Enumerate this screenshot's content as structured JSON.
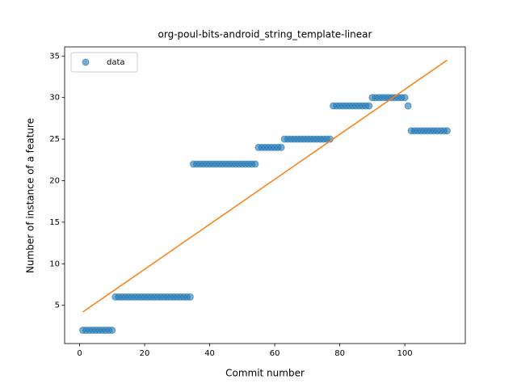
{
  "chart_data": {
    "type": "scatter",
    "title": "org-poul-bits-android_string_template-linear",
    "xlabel": "Commit number",
    "ylabel": "Number of instance of a feature",
    "xlim": [
      -4.6,
      118.6
    ],
    "ylim": [
      0.4,
      36.1
    ],
    "xticks": [
      0,
      20,
      40,
      60,
      80,
      100
    ],
    "yticks": [
      5,
      10,
      15,
      20,
      25,
      30,
      35
    ],
    "legend": "upper left",
    "series": [
      {
        "name": "data",
        "kind": "scatter",
        "color": "#1f77b4",
        "x": [
          1,
          2,
          3,
          4,
          5,
          6,
          7,
          8,
          9,
          10,
          11,
          12,
          13,
          14,
          15,
          16,
          17,
          18,
          19,
          20,
          21,
          22,
          23,
          24,
          25,
          26,
          27,
          28,
          29,
          30,
          31,
          32,
          33,
          34,
          35,
          36,
          37,
          38,
          39,
          40,
          41,
          42,
          43,
          44,
          45,
          46,
          47,
          48,
          49,
          50,
          51,
          52,
          53,
          54,
          55,
          56,
          57,
          58,
          59,
          60,
          61,
          62,
          63,
          64,
          65,
          66,
          67,
          68,
          69,
          70,
          71,
          72,
          73,
          74,
          75,
          76,
          77,
          78,
          79,
          80,
          81,
          82,
          83,
          84,
          85,
          86,
          87,
          88,
          89,
          90,
          91,
          92,
          93,
          94,
          95,
          96,
          97,
          98,
          99,
          100,
          101,
          102,
          103,
          104,
          105,
          106,
          107,
          108,
          109,
          110,
          111,
          112,
          113
        ],
        "values": [
          2,
          2,
          2,
          2,
          2,
          2,
          2,
          2,
          2,
          2,
          6,
          6,
          6,
          6,
          6,
          6,
          6,
          6,
          6,
          6,
          6,
          6,
          6,
          6,
          6,
          6,
          6,
          6,
          6,
          6,
          6,
          6,
          6,
          6,
          22,
          22,
          22,
          22,
          22,
          22,
          22,
          22,
          22,
          22,
          22,
          22,
          22,
          22,
          22,
          22,
          22,
          22,
          22,
          22,
          24,
          24,
          24,
          24,
          24,
          24,
          24,
          24,
          25,
          25,
          25,
          25,
          25,
          25,
          25,
          25,
          25,
          25,
          25,
          25,
          25,
          25,
          25,
          29,
          29,
          29,
          29,
          29,
          29,
          29,
          29,
          29,
          29,
          29,
          29,
          30,
          30,
          30,
          30,
          30,
          30,
          30,
          30,
          30,
          30,
          30,
          29,
          26,
          26,
          26,
          26,
          26,
          26,
          26,
          26,
          26,
          26,
          26,
          26
        ]
      },
      {
        "kind": "line",
        "color": "#ff7f0e",
        "x": [
          1,
          113
        ],
        "values": [
          4.2,
          34.5
        ]
      }
    ]
  }
}
